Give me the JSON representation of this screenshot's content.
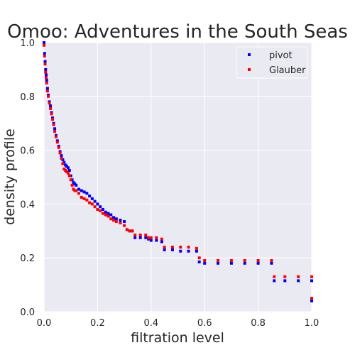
{
  "chart_data": {
    "type": "scatter",
    "title": "Omoo: Adventures in the South Seas",
    "xlabel": "filtration level",
    "ylabel": "density profile",
    "xlim": [
      0,
      1
    ],
    "ylim": [
      0,
      1
    ],
    "xticks": [
      "0.0",
      "0.2",
      "0.4",
      "0.6",
      "0.8",
      "1.0"
    ],
    "yticks": [
      "0.0",
      "0.2",
      "0.4",
      "0.6",
      "0.8",
      "1.0"
    ],
    "grid": true,
    "legend": "top-right",
    "series": [
      {
        "name": "pivot",
        "color": "#0000ff",
        "points": [
          [
            0.0,
            1.0
          ],
          [
            0.002,
            0.96
          ],
          [
            0.004,
            0.93
          ],
          [
            0.006,
            0.9
          ],
          [
            0.008,
            0.88
          ],
          [
            0.01,
            0.86
          ],
          [
            0.013,
            0.83
          ],
          [
            0.016,
            0.805
          ],
          [
            0.02,
            0.78
          ],
          [
            0.024,
            0.765
          ],
          [
            0.028,
            0.74
          ],
          [
            0.032,
            0.72
          ],
          [
            0.036,
            0.7
          ],
          [
            0.04,
            0.68
          ],
          [
            0.045,
            0.655
          ],
          [
            0.05,
            0.635
          ],
          [
            0.055,
            0.615
          ],
          [
            0.06,
            0.595
          ],
          [
            0.065,
            0.58
          ],
          [
            0.07,
            0.565
          ],
          [
            0.075,
            0.555
          ],
          [
            0.08,
            0.545
          ],
          [
            0.085,
            0.54
          ],
          [
            0.09,
            0.535
          ],
          [
            0.095,
            0.525
          ],
          [
            0.1,
            0.505
          ],
          [
            0.105,
            0.49
          ],
          [
            0.11,
            0.48
          ],
          [
            0.115,
            0.475
          ],
          [
            0.12,
            0.47
          ],
          [
            0.13,
            0.455
          ],
          [
            0.14,
            0.45
          ],
          [
            0.15,
            0.445
          ],
          [
            0.16,
            0.44
          ],
          [
            0.17,
            0.43
          ],
          [
            0.18,
            0.42
          ],
          [
            0.19,
            0.41
          ],
          [
            0.2,
            0.4
          ],
          [
            0.21,
            0.39
          ],
          [
            0.22,
            0.38
          ],
          [
            0.23,
            0.37
          ],
          [
            0.24,
            0.365
          ],
          [
            0.25,
            0.36
          ],
          [
            0.26,
            0.35
          ],
          [
            0.27,
            0.345
          ],
          [
            0.285,
            0.34
          ],
          [
            0.3,
            0.335
          ],
          [
            0.31,
            0.305
          ],
          [
            0.32,
            0.3
          ],
          [
            0.33,
            0.3
          ],
          [
            0.34,
            0.275
          ],
          [
            0.36,
            0.275
          ],
          [
            0.38,
            0.275
          ],
          [
            0.39,
            0.27
          ],
          [
            0.4,
            0.265
          ],
          [
            0.42,
            0.265
          ],
          [
            0.44,
            0.26
          ],
          [
            0.45,
            0.23
          ],
          [
            0.48,
            0.23
          ],
          [
            0.51,
            0.225
          ],
          [
            0.54,
            0.225
          ],
          [
            0.57,
            0.225
          ],
          [
            0.58,
            0.185
          ],
          [
            0.6,
            0.18
          ],
          [
            0.65,
            0.18
          ],
          [
            0.7,
            0.18
          ],
          [
            0.75,
            0.18
          ],
          [
            0.8,
            0.18
          ],
          [
            0.85,
            0.18
          ],
          [
            0.86,
            0.115
          ],
          [
            0.9,
            0.115
          ],
          [
            0.95,
            0.115
          ],
          [
            1.0,
            0.115
          ],
          [
            1.0,
            0.04
          ]
        ]
      },
      {
        "name": "Glauber",
        "color": "#ff0000",
        "points": [
          [
            0.0,
            0.99
          ],
          [
            0.002,
            0.95
          ],
          [
            0.004,
            0.92
          ],
          [
            0.006,
            0.89
          ],
          [
            0.008,
            0.87
          ],
          [
            0.01,
            0.85
          ],
          [
            0.013,
            0.82
          ],
          [
            0.016,
            0.8
          ],
          [
            0.02,
            0.775
          ],
          [
            0.024,
            0.755
          ],
          [
            0.028,
            0.735
          ],
          [
            0.032,
            0.715
          ],
          [
            0.036,
            0.695
          ],
          [
            0.04,
            0.67
          ],
          [
            0.045,
            0.65
          ],
          [
            0.05,
            0.63
          ],
          [
            0.055,
            0.61
          ],
          [
            0.06,
            0.59
          ],
          [
            0.065,
            0.57
          ],
          [
            0.07,
            0.55
          ],
          [
            0.075,
            0.53
          ],
          [
            0.08,
            0.525
          ],
          [
            0.085,
            0.52
          ],
          [
            0.09,
            0.515
          ],
          [
            0.095,
            0.505
          ],
          [
            0.1,
            0.49
          ],
          [
            0.105,
            0.47
          ],
          [
            0.11,
            0.455
          ],
          [
            0.115,
            0.45
          ],
          [
            0.12,
            0.45
          ],
          [
            0.13,
            0.44
          ],
          [
            0.14,
            0.425
          ],
          [
            0.15,
            0.42
          ],
          [
            0.16,
            0.415
          ],
          [
            0.17,
            0.405
          ],
          [
            0.18,
            0.4
          ],
          [
            0.19,
            0.39
          ],
          [
            0.2,
            0.38
          ],
          [
            0.21,
            0.375
          ],
          [
            0.22,
            0.365
          ],
          [
            0.23,
            0.36
          ],
          [
            0.24,
            0.355
          ],
          [
            0.25,
            0.345
          ],
          [
            0.26,
            0.34
          ],
          [
            0.27,
            0.335
          ],
          [
            0.285,
            0.33
          ],
          [
            0.3,
            0.32
          ],
          [
            0.31,
            0.305
          ],
          [
            0.32,
            0.3
          ],
          [
            0.33,
            0.3
          ],
          [
            0.34,
            0.285
          ],
          [
            0.36,
            0.285
          ],
          [
            0.38,
            0.285
          ],
          [
            0.39,
            0.275
          ],
          [
            0.4,
            0.275
          ],
          [
            0.42,
            0.275
          ],
          [
            0.44,
            0.27
          ],
          [
            0.45,
            0.24
          ],
          [
            0.48,
            0.24
          ],
          [
            0.51,
            0.24
          ],
          [
            0.54,
            0.24
          ],
          [
            0.57,
            0.235
          ],
          [
            0.58,
            0.2
          ],
          [
            0.6,
            0.19
          ],
          [
            0.65,
            0.19
          ],
          [
            0.7,
            0.19
          ],
          [
            0.75,
            0.19
          ],
          [
            0.8,
            0.19
          ],
          [
            0.85,
            0.19
          ],
          [
            0.86,
            0.13
          ],
          [
            0.9,
            0.13
          ],
          [
            0.95,
            0.13
          ],
          [
            1.0,
            0.13
          ],
          [
            1.0,
            0.05
          ]
        ]
      }
    ]
  }
}
